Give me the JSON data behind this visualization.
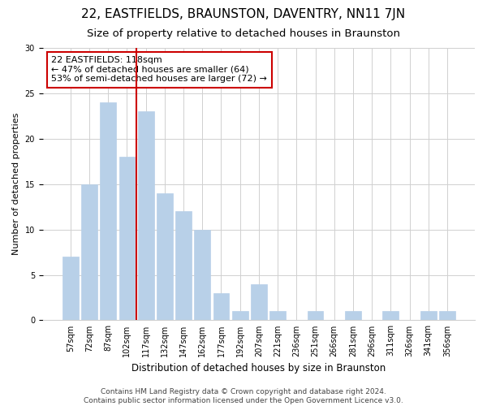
{
  "title": "22, EASTFIELDS, BRAUNSTON, DAVENTRY, NN11 7JN",
  "subtitle": "Size of property relative to detached houses in Braunston",
  "xlabel": "Distribution of detached houses by size in Braunston",
  "ylabel": "Number of detached properties",
  "bar_values": [
    7,
    15,
    24,
    18,
    23,
    14,
    12,
    10,
    3,
    1,
    4,
    1,
    0,
    1,
    0,
    1,
    0,
    1,
    0,
    1,
    1
  ],
  "bar_labels": [
    "57sqm",
    "72sqm",
    "87sqm",
    "102sqm",
    "117sqm",
    "132sqm",
    "147sqm",
    "162sqm",
    "177sqm",
    "192sqm",
    "207sqm",
    "221sqm",
    "236sqm",
    "251sqm",
    "266sqm",
    "281sqm",
    "296sqm",
    "311sqm",
    "326sqm",
    "341sqm",
    "356sqm"
  ],
  "bar_color": "#b8d0e8",
  "bar_edgecolor": "#b8d0e8",
  "vline_x": 4.0,
  "vline_color": "#cc0000",
  "annotation_text": "22 EASTFIELDS: 118sqm\n← 47% of detached houses are smaller (64)\n53% of semi-detached houses are larger (72) →",
  "annotation_box_edgecolor": "#cc0000",
  "annotation_box_facecolor": "#ffffff",
  "ylim": [
    0,
    30
  ],
  "yticks": [
    0,
    5,
    10,
    15,
    20,
    25,
    30
  ],
  "grid_color": "#d0d0d0",
  "background_color": "#ffffff",
  "footer_text": "Contains HM Land Registry data © Crown copyright and database right 2024.\nContains public sector information licensed under the Open Government Licence v3.0.",
  "title_fontsize": 11,
  "subtitle_fontsize": 9.5,
  "xlabel_fontsize": 8.5,
  "ylabel_fontsize": 8,
  "tick_fontsize": 7,
  "annotation_fontsize": 8,
  "footer_fontsize": 6.5
}
